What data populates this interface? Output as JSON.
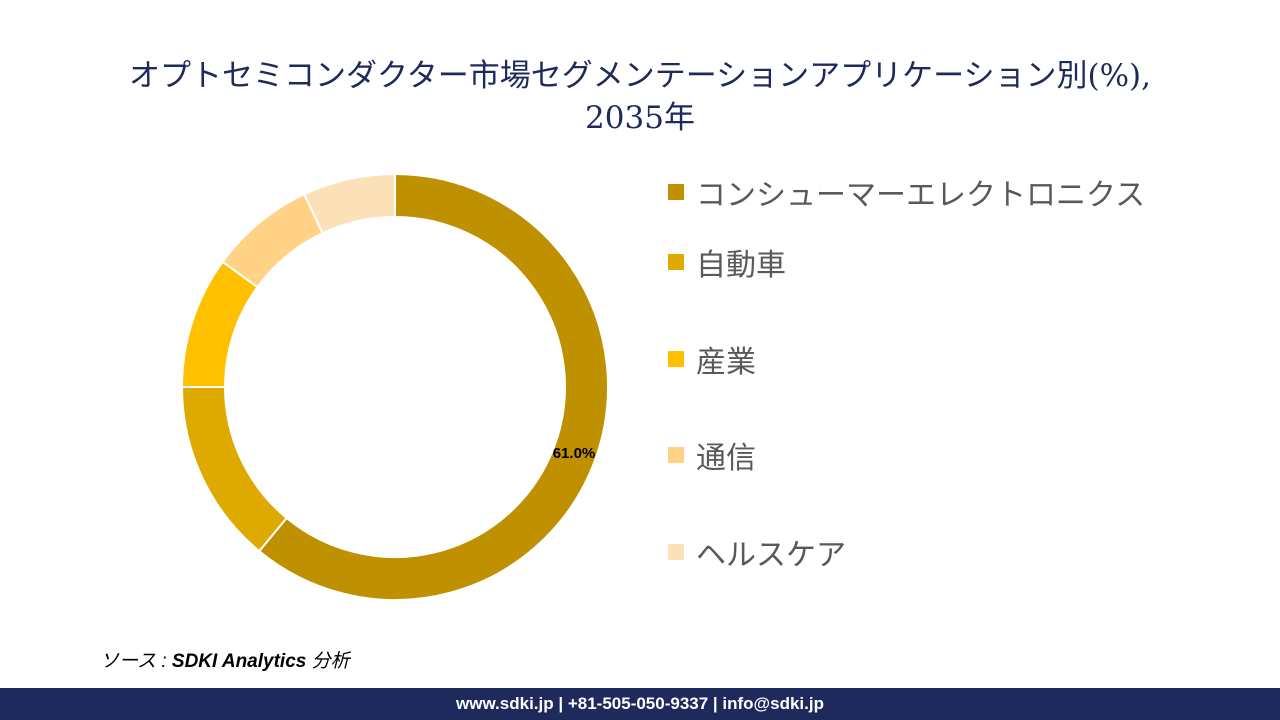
{
  "chart_data": {
    "type": "pie",
    "title_line1": "オプトセミコンダクター市場セグメンテーションアプリケーション別(%),",
    "title_line2": "2035年",
    "categories": [
      "コンシューマーエレクトロニクス",
      "自動車",
      "産業",
      "通信",
      "ヘルスケア"
    ],
    "values": [
      61.0,
      14.0,
      10.0,
      8.0,
      7.0
    ],
    "colors": [
      "#BF9000",
      "#DEA900",
      "#FFC000",
      "#FFD285",
      "#FCE0B8"
    ],
    "data_labels": [
      "61.0%"
    ],
    "donut": true,
    "legend_position": "right"
  },
  "source": {
    "prefix": "ソース : ",
    "name": "SDKI Analytics",
    "suffix": " 分析"
  },
  "footer": {
    "text": "www.sdki.jp | +81-505-050-9337 | info@sdki.jp"
  }
}
